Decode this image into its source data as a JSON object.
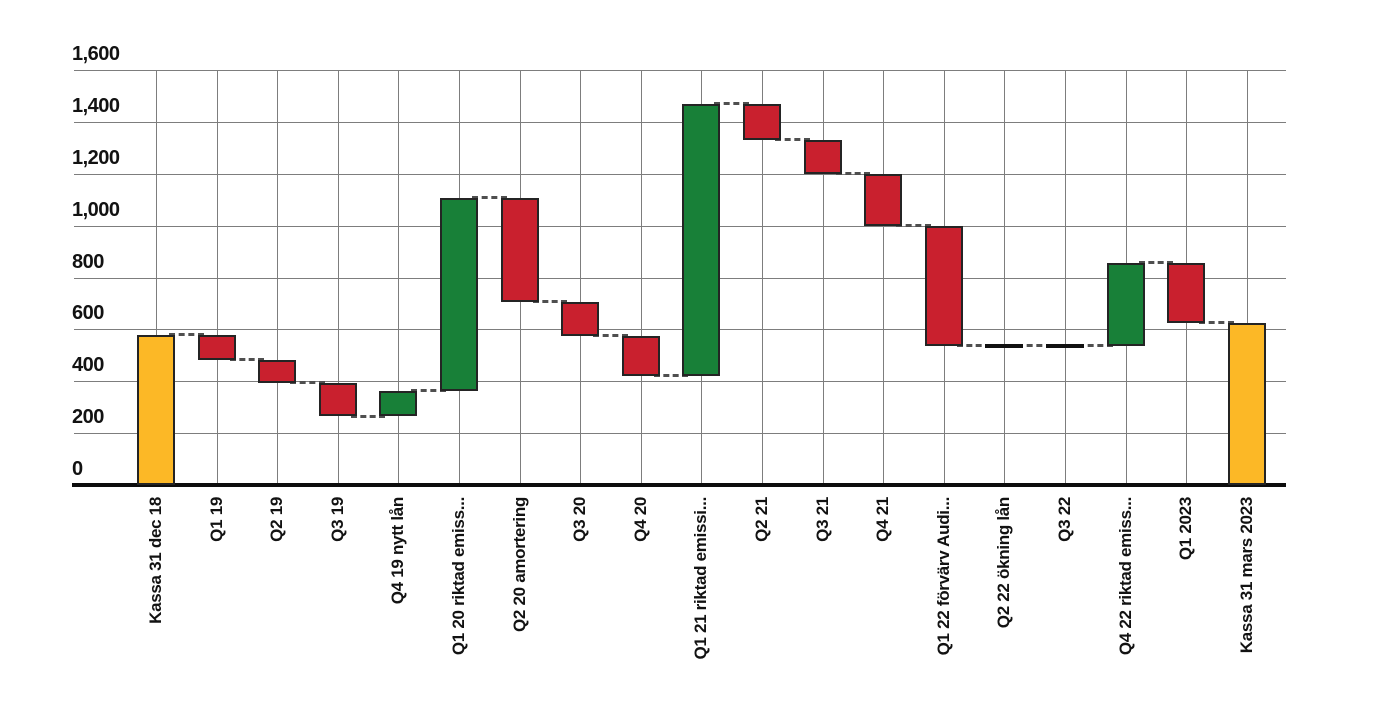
{
  "chart_data": {
    "type": "bar",
    "subtype": "waterfall",
    "title": "",
    "xlabel": "",
    "ylabel": "",
    "ylim": [
      0,
      1600
    ],
    "ytick_interval": 200,
    "ytick_labels": [
      "0",
      "200",
      "400",
      "600",
      "800",
      "1,000",
      "1,200",
      "1,400",
      "1,600"
    ],
    "grid": true,
    "legend": false,
    "categories": [
      "Kassa 31 dec 18",
      "Q1 19",
      "Q2 19",
      "Q3 19",
      "Q4 19 nytt lån",
      "Q1 20 riktad emiss...",
      "Q2 20 amortering",
      "Q3 20",
      "Q4 20",
      "Q1 21 riktad emissi...",
      "Q2 21",
      "Q3 21",
      "Q4 21",
      "Q1 22 förvärv Audi...",
      "Q2 22 ökning lån",
      "Q3 22",
      "Q4 22 riktad emiss...",
      "Q1 2023",
      "Kassa 31 mars 2023"
    ],
    "bars": [
      {
        "label": "Kassa 31 dec 18",
        "start": 0,
        "end": 578,
        "delta": 578,
        "kind": "total"
      },
      {
        "label": "Q1 19",
        "start": 578,
        "end": 482,
        "delta": -96,
        "kind": "decrease"
      },
      {
        "label": "Q2 19",
        "start": 482,
        "end": 394,
        "delta": -88,
        "kind": "decrease"
      },
      {
        "label": "Q3 19",
        "start": 394,
        "end": 264,
        "delta": -130,
        "kind": "decrease"
      },
      {
        "label": "Q4 19 nytt lån",
        "start": 264,
        "end": 364,
        "delta": 100,
        "kind": "increase"
      },
      {
        "label": "Q1 20 riktad emiss...",
        "start": 364,
        "end": 1105,
        "delta": 741,
        "kind": "increase"
      },
      {
        "label": "Q2 20 amortering",
        "start": 1105,
        "end": 705,
        "delta": -400,
        "kind": "decrease"
      },
      {
        "label": "Q3 20",
        "start": 705,
        "end": 574,
        "delta": -131,
        "kind": "decrease"
      },
      {
        "label": "Q4 20",
        "start": 574,
        "end": 420,
        "delta": -154,
        "kind": "decrease"
      },
      {
        "label": "Q1 21 riktad emissi...",
        "start": 420,
        "end": 1470,
        "delta": 1050,
        "kind": "increase"
      },
      {
        "label": "Q2 21",
        "start": 1470,
        "end": 1330,
        "delta": -140,
        "kind": "decrease"
      },
      {
        "label": "Q3 21",
        "start": 1330,
        "end": 1200,
        "delta": -130,
        "kind": "decrease"
      },
      {
        "label": "Q4 21",
        "start": 1200,
        "end": 1000,
        "delta": -200,
        "kind": "decrease"
      },
      {
        "label": "Q1 22 förvärv Audi...",
        "start": 1000,
        "end": 535,
        "delta": -465,
        "kind": "decrease"
      },
      {
        "label": "Q2 22 ökning lån",
        "start": 535,
        "end": 535,
        "delta": 0,
        "kind": "flat"
      },
      {
        "label": "Q3 22",
        "start": 535,
        "end": 535,
        "delta": 0,
        "kind": "flat"
      },
      {
        "label": "Q4 22 riktad emiss...",
        "start": 535,
        "end": 855,
        "delta": 320,
        "kind": "increase"
      },
      {
        "label": "Q1 2023",
        "start": 855,
        "end": 625,
        "delta": -230,
        "kind": "decrease"
      },
      {
        "label": "Kassa 31 mars 2023",
        "start": 0,
        "end": 625,
        "delta": 625,
        "kind": "total"
      }
    ],
    "colors": {
      "total": "#FCB826",
      "increase": "#188038",
      "decrease": "#C9202E",
      "flat": "#111111",
      "gridline": "#7d7d7d",
      "axis": "#0d0d0d",
      "connector": "#4f4f4f",
      "text": "#121212"
    }
  }
}
